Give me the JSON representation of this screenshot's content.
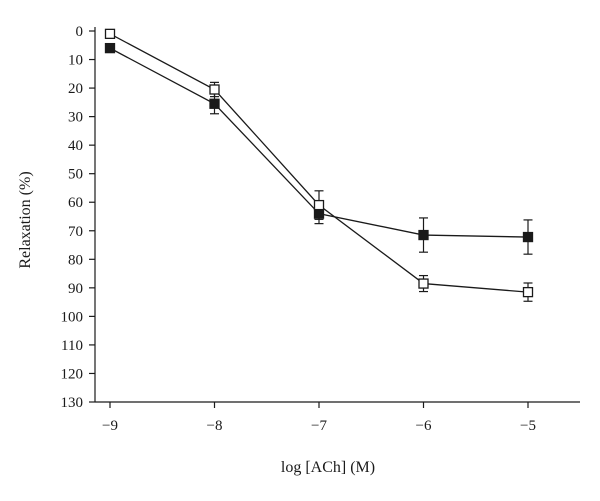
{
  "chart_data": {
    "type": "line",
    "title": "",
    "xlabel": "log [ACh] (M)",
    "ylabel": "Relaxation (%)",
    "x": [
      -9,
      -8,
      -7,
      -6,
      -5
    ],
    "xlim": [
      -9.15,
      -4.5
    ],
    "ylim": [
      0,
      130
    ],
    "y_inverted": true,
    "x_ticks": [
      -9,
      -8,
      -7,
      -6,
      -5
    ],
    "x_tick_labels": [
      "−9",
      "−8",
      "−7",
      "−6",
      "−5"
    ],
    "y_ticks": [
      0,
      10,
      20,
      30,
      40,
      50,
      60,
      70,
      80,
      90,
      100,
      110,
      120,
      130
    ],
    "y_tick_labels": [
      "0",
      "10",
      "20",
      "30",
      "40",
      "50",
      "60",
      "70",
      "80",
      "90",
      "100",
      "110",
      "120",
      "130"
    ],
    "grid": false,
    "legend": "none",
    "series": [
      {
        "marker": "filled-square",
        "color": "#1a1a1a",
        "values": [
          6,
          25.5,
          64,
          71.5,
          72.2
        ],
        "errors": [
          1,
          3.5,
          3.5,
          6,
          6
        ]
      },
      {
        "marker": "open-square",
        "color": "#1a1a1a",
        "values": [
          1,
          20.5,
          61,
          88.5,
          91.5
        ],
        "errors": [
          0.8,
          2.5,
          5,
          2.8,
          3.2
        ]
      }
    ]
  }
}
